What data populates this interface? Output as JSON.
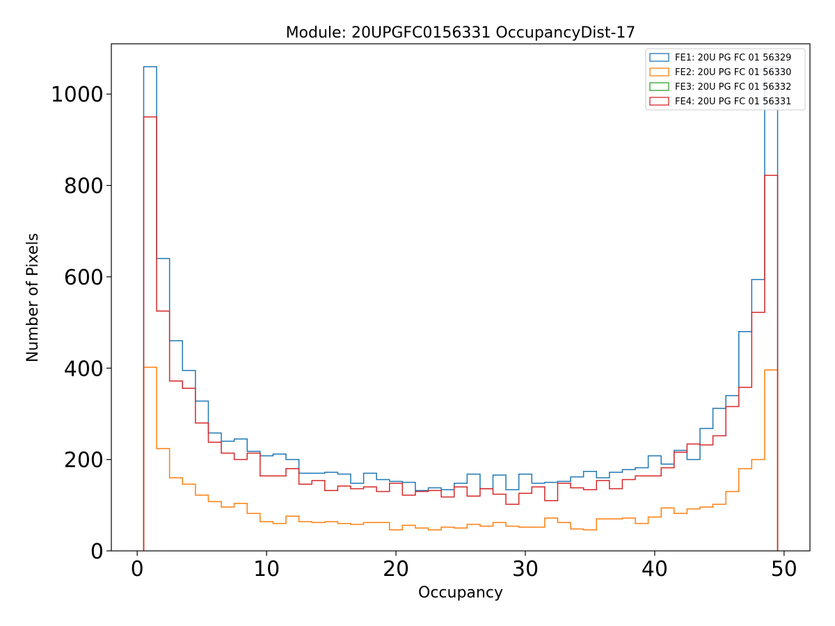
{
  "chart_data": {
    "type": "histogram",
    "title": "Module: 20UPGFC0156331 OccupancyDist-17",
    "xlabel": "Occupancy",
    "ylabel": "Number of Pixels",
    "xlim": [
      -2,
      52
    ],
    "ylim": [
      0,
      1110
    ],
    "bin_edges_start": 0.5,
    "bin_width": 1,
    "x_ticks": [
      0,
      10,
      20,
      30,
      40,
      50
    ],
    "y_ticks": [
      0,
      200,
      400,
      600,
      800,
      1000
    ],
    "x_tick_labels": [
      "0",
      "10",
      "20",
      "30",
      "40",
      "50"
    ],
    "y_tick_labels": [
      "0",
      "200",
      "400",
      "600",
      "800",
      "1000"
    ],
    "legend_position": "top-right",
    "series": [
      {
        "name": "FE1: 20U PG FC 01 56329",
        "color": "#1f77b4",
        "values": [
          1060,
          640,
          460,
          395,
          328,
          258,
          240,
          245,
          218,
          208,
          212,
          200,
          170,
          170,
          172,
          168,
          148,
          170,
          156,
          152,
          150,
          132,
          138,
          134,
          148,
          168,
          136,
          166,
          134,
          168,
          148,
          150,
          152,
          162,
          174,
          160,
          172,
          178,
          182,
          208,
          190,
          220,
          200,
          268,
          312,
          340,
          480,
          594,
          1060
        ]
      },
      {
        "name": "FE2: 20U PG FC 01 56330",
        "color": "#ff7f0e",
        "values": [
          402,
          224,
          160,
          146,
          122,
          108,
          96,
          104,
          82,
          64,
          60,
          76,
          64,
          62,
          64,
          60,
          58,
          62,
          62,
          46,
          56,
          50,
          46,
          52,
          50,
          58,
          54,
          62,
          54,
          52,
          52,
          72,
          62,
          48,
          46,
          70,
          70,
          72,
          60,
          74,
          94,
          82,
          92,
          96,
          102,
          130,
          180,
          200,
          396
        ]
      },
      {
        "name": "FE3: 20U PG FC 01 56332",
        "color": "#2ca02c",
        "values": []
      },
      {
        "name": "FE4: 20U PG FC 01 56331",
        "color": "#d62728",
        "values": [
          950,
          525,
          372,
          356,
          280,
          238,
          214,
          200,
          214,
          164,
          164,
          180,
          146,
          154,
          132,
          142,
          136,
          140,
          130,
          148,
          122,
          130,
          132,
          118,
          140,
          120,
          136,
          124,
          102,
          126,
          140,
          110,
          148,
          138,
          134,
          154,
          136,
          156,
          164,
          164,
          182,
          216,
          234,
          232,
          252,
          316,
          358,
          522,
          822
        ]
      }
    ]
  }
}
